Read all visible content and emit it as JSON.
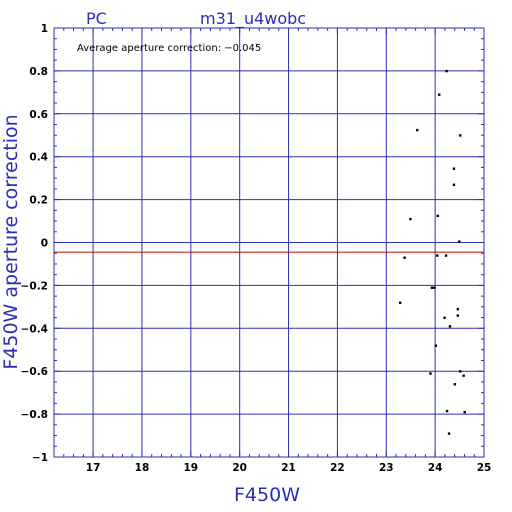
{
  "chart_data": {
    "type": "scatter",
    "title_left": "PC",
    "title": "m31_u4wobc",
    "xlabel": "F450W",
    "ylabel": "F450W aperture correction",
    "annotation": "Average aperture correction: −0.045",
    "xlim": [
      16.2,
      25.0
    ],
    "ylim": [
      -1.0,
      1.0
    ],
    "x_ticks": [
      17,
      18,
      19,
      20,
      21,
      22,
      23,
      24,
      25
    ],
    "x_tick_labels": [
      "17",
      "18",
      "19",
      "20",
      "21",
      "22",
      "23",
      "24",
      "25"
    ],
    "y_ticks": [
      1.0,
      0.8,
      0.6,
      0.4,
      0.2,
      0.0,
      -0.2,
      -0.4,
      -0.6,
      -0.8,
      -1.0
    ],
    "y_tick_labels": [
      "1",
      "0.8",
      "0.6",
      "0.4",
      "0.2",
      "0",
      "−0.2",
      "−0.4",
      "−0.6",
      "−0.8",
      "−1"
    ],
    "grid": true,
    "average_line": -0.045,
    "colors": {
      "grid": "#2d2db8",
      "text": "#2d2db8",
      "average_line": "#cc0000",
      "points": "#000000"
    },
    "points": [
      {
        "x": 24.23,
        "y": 0.8
      },
      {
        "x": 24.08,
        "y": 0.69
      },
      {
        "x": 23.63,
        "y": 0.525
      },
      {
        "x": 24.51,
        "y": 0.5
      },
      {
        "x": 24.38,
        "y": 0.345
      },
      {
        "x": 24.38,
        "y": 0.27
      },
      {
        "x": 24.05,
        "y": 0.125
      },
      {
        "x": 23.49,
        "y": 0.11
      },
      {
        "x": 24.49,
        "y": 0.005
      },
      {
        "x": 23.37,
        "y": -0.07
      },
      {
        "x": 24.22,
        "y": -0.06
      },
      {
        "x": 24.04,
        "y": -0.06
      },
      {
        "x": 23.93,
        "y": -0.21
      },
      {
        "x": 23.98,
        "y": -0.21
      },
      {
        "x": 23.28,
        "y": -0.28
      },
      {
        "x": 24.46,
        "y": -0.31
      },
      {
        "x": 24.19,
        "y": -0.35
      },
      {
        "x": 24.46,
        "y": -0.34
      },
      {
        "x": 24.3,
        "y": -0.39
      },
      {
        "x": 24.01,
        "y": -0.48
      },
      {
        "x": 24.51,
        "y": -0.6
      },
      {
        "x": 24.58,
        "y": -0.62
      },
      {
        "x": 23.9,
        "y": -0.61
      },
      {
        "x": 24.4,
        "y": -0.66
      },
      {
        "x": 24.24,
        "y": -0.785
      },
      {
        "x": 24.6,
        "y": -0.79
      },
      {
        "x": 24.28,
        "y": -0.89
      }
    ]
  }
}
